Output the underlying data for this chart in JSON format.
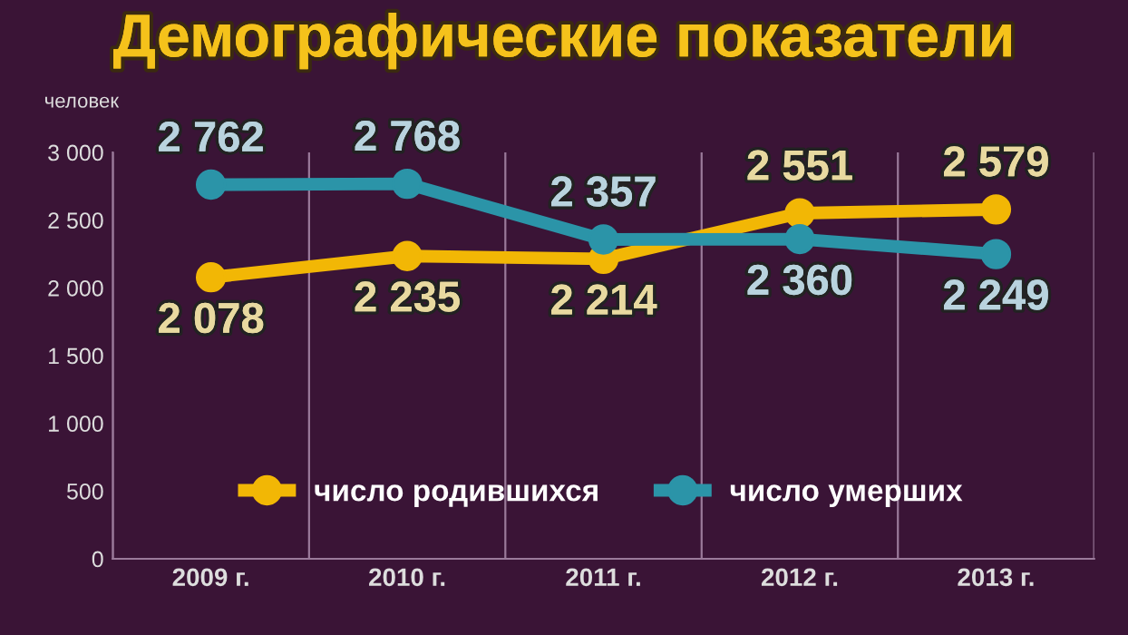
{
  "chart_data": {
    "type": "line",
    "title": "Демографические показатели",
    "ylabel": "человек",
    "categories": [
      "2009 г.",
      "2010 г.",
      "2011 г.",
      "2012 г.",
      "2013 г."
    ],
    "series": [
      {
        "name": "число родившихся",
        "color": "#f2b705",
        "values": [
          2078,
          2235,
          2214,
          2551,
          2579
        ],
        "value_labels": [
          "2 078",
          "2 235",
          "2 214",
          "2 551",
          "2 579"
        ]
      },
      {
        "name": "число умерших",
        "color": "#2b94a8",
        "values": [
          2762,
          2768,
          2357,
          2360,
          2249
        ],
        "value_labels": [
          "2 762",
          "2 768",
          "2 357",
          "2 360",
          "2 249"
        ]
      }
    ],
    "ylim": [
      0,
      3000
    ],
    "yticks": [
      {
        "value": 0,
        "label": "0"
      },
      {
        "value": 500,
        "label": "500"
      },
      {
        "value": 1000,
        "label": "1 000"
      },
      {
        "value": 1500,
        "label": "1 500"
      },
      {
        "value": 2000,
        "label": "2 000"
      },
      {
        "value": 2500,
        "label": "2 500"
      },
      {
        "value": 3000,
        "label": "3 000"
      }
    ],
    "grid": "x",
    "legend": "bottom",
    "marker": "circle",
    "line_style": "solid"
  }
}
